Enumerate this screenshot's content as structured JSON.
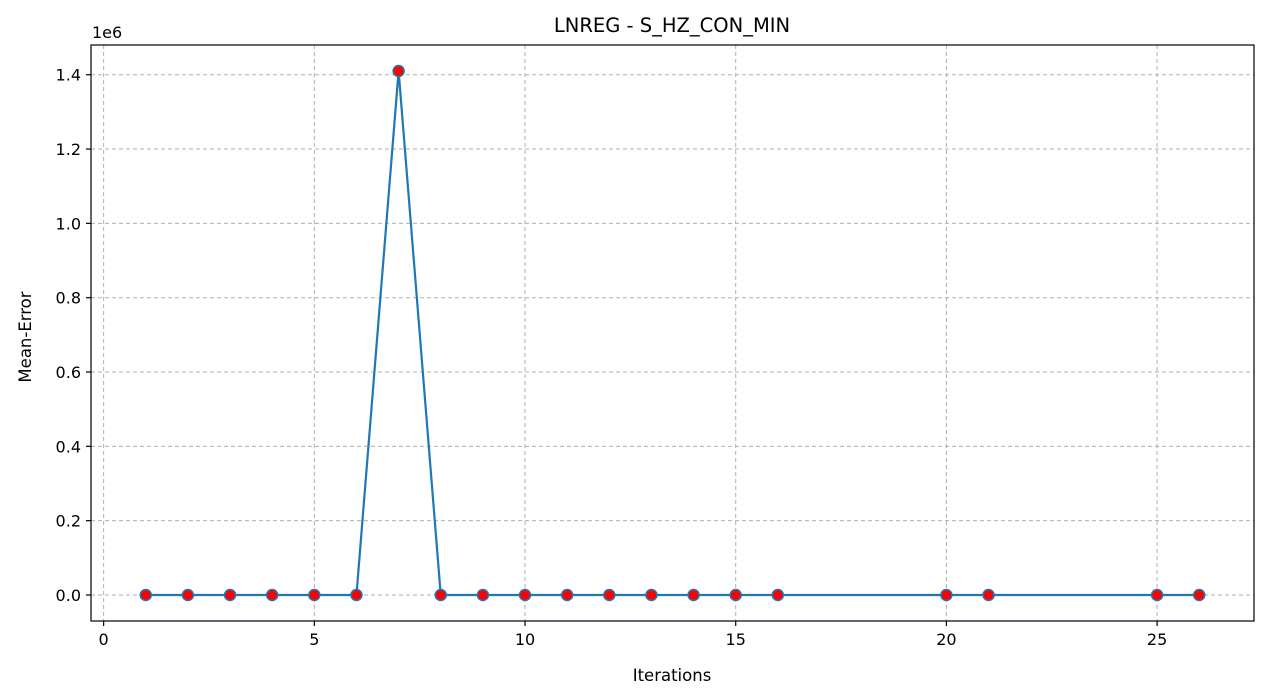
{
  "chart_data": {
    "type": "line",
    "title": "LNREG - S_HZ_CON_MIN",
    "xlabel": "Iterations",
    "ylabel": "Mean-Error",
    "y_offset_text": "1e6",
    "xlim": [
      -0.3,
      27.3
    ],
    "ylim": [
      -0.07,
      1.48
    ],
    "x_ticks": [
      0,
      5,
      10,
      15,
      20,
      25
    ],
    "x_tick_labels": [
      "0",
      "5",
      "10",
      "15",
      "20",
      "25"
    ],
    "y_ticks": [
      0.0,
      0.2,
      0.4,
      0.6,
      0.8,
      1.0,
      1.2,
      1.4
    ],
    "y_tick_labels": [
      "0.0",
      "0.2",
      "0.4",
      "0.6",
      "0.8",
      "1.0",
      "1.2",
      "1.4"
    ],
    "grid": true,
    "series": [
      {
        "x": [
          1,
          2,
          3,
          4,
          5,
          6,
          7,
          8,
          9,
          10,
          11,
          12,
          13,
          14,
          15,
          16,
          20,
          21,
          25,
          26
        ],
        "y": [
          0,
          0,
          0,
          0,
          0,
          0,
          1.41,
          0,
          0,
          0,
          0,
          0,
          0,
          0,
          0,
          0,
          0,
          0,
          0,
          0
        ]
      }
    ],
    "colors": {
      "line": "#1f77b4",
      "marker_face": "#ff0000",
      "marker_edge": "#1f77b4",
      "grid": "#b0b0b0"
    }
  }
}
